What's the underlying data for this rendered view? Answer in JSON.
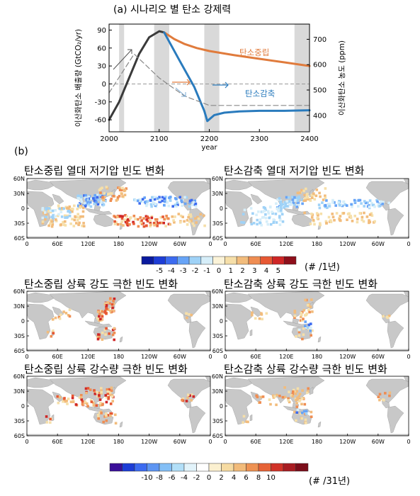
{
  "panel_a": {
    "title": "(a)  시나리오 별 탄소 강제력",
    "chart_data": {
      "type": "line",
      "title": "(a)  시나리오 별 탄소 강제력",
      "xlabel": "year",
      "ylabel_left": "이산화탄소 배출량 (GtCO₂/yr)",
      "ylabel_right": "이산화탄소 농도 (ppm)",
      "x_range": [
        2000,
        2400
      ],
      "y_left_range": [
        -80,
        100
      ],
      "y_right_range": [
        335,
        760
      ],
      "x_ticks": [
        "2000",
        "2100",
        "2200",
        "2300",
        "2400"
      ],
      "y_left_ticks": [
        "90",
        "60",
        "30",
        "0",
        "-30",
        "-60"
      ],
      "y_right_ticks": [
        "700",
        "600",
        "500",
        "400"
      ],
      "shaded_periods": [
        [
          2020,
          2030
        ],
        [
          2090,
          2120
        ],
        [
          2190,
          2220
        ],
        [
          2370,
          2400
        ]
      ],
      "series": [
        {
          "name": "",
          "color": "#3a3a3a",
          "x": [
            2000,
            2020,
            2040,
            2060,
            2080,
            2100,
            2110
          ],
          "y": [
            -60,
            -30,
            10,
            50,
            78,
            88,
            86
          ]
        },
        {
          "name": "탄소중립",
          "color": "#e07b3c",
          "x": [
            2110,
            2130,
            2150,
            2175,
            2200,
            2250,
            2300,
            2350,
            2400
          ],
          "y": [
            86,
            75,
            67,
            60,
            55,
            48,
            42,
            36,
            30
          ]
        },
        {
          "name": "탄소감축",
          "color": "#2a7bbd",
          "x": [
            2110,
            2140,
            2170,
            2190,
            2196,
            2210,
            2230,
            2260,
            2300,
            2350,
            2400
          ],
          "y": [
            86,
            40,
            -5,
            -45,
            -62,
            -52,
            -48,
            -46,
            -45,
            -45,
            -44
          ]
        },
        {
          "name": "",
          "color": "#888888",
          "dashed": true,
          "x": [
            2000,
            2050,
            2100,
            2150,
            2200,
            2250,
            2300,
            2350,
            2400
          ],
          "y": [
            -15,
            50,
            10,
            -20,
            -36,
            -36,
            -36,
            -36,
            -36
          ]
        }
      ]
    }
  },
  "panel_b": {
    "letter": "(b)",
    "map_axes": {
      "lat_labels": [
        "60N",
        "30N",
        "0",
        "30S",
        "60S"
      ],
      "lon_labels": [
        "0",
        "60E",
        "120E",
        "180",
        "120W",
        "60W",
        "0"
      ]
    },
    "maps": [
      {
        "id": "tc-neutral",
        "title": "탄소중립 열대 저기압 빈도 변화"
      },
      {
        "id": "tc-reduction",
        "title": "탄소감축 열대 저기압 빈도 변화"
      },
      {
        "id": "wind-neutral",
        "title": "탄소중립 상륙 강도 극한 빈도 변화"
      },
      {
        "id": "wind-reduction",
        "title": "탄소감축 상륙 강도 극한 빈도 변화"
      },
      {
        "id": "rain-neutral",
        "title": "탄소중립 상륙 강수량 극한 빈도 변화"
      },
      {
        "id": "rain-reduction",
        "title": "탄소감축 상륙 강수량 극한 빈도 변화"
      }
    ],
    "colorbar_1": {
      "labels": [
        "-5",
        "-4",
        "-3",
        "-2",
        "-1",
        "0",
        "1",
        "2",
        "3",
        "4",
        "5"
      ],
      "unit": "(# /1년)",
      "colors": [
        "#0a1a9e",
        "#1d3dd6",
        "#3c6bf0",
        "#67a4f7",
        "#9fd2f7",
        "#d6eef9",
        "#fbf3d8",
        "#f6dfa9",
        "#f2bc7c",
        "#ef8d52",
        "#e75833",
        "#cf2626",
        "#8e0f1b"
      ]
    },
    "colorbar_2": {
      "labels": [
        "-10",
        "-8",
        "-6",
        "-4",
        "-2",
        "0",
        "2",
        "4",
        "6",
        "8",
        "10"
      ],
      "unit": "(# /31년)",
      "colors": [
        "#3a0f99",
        "#1d3dd6",
        "#3c6bf0",
        "#5d95f2",
        "#84bff6",
        "#b2dff8",
        "#e2f3fa",
        "#ffffff",
        "#fbf0d0",
        "#f6dba2",
        "#f2bb7a",
        "#ee9253",
        "#e66337",
        "#d13328",
        "#a81c22",
        "#7b0d1a"
      ]
    }
  }
}
